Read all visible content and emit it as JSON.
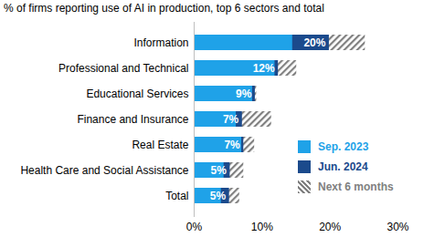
{
  "chart_data": {
    "type": "bar",
    "title": "% of firms reporting use of AI in production, top 6 sectors and total",
    "orientation": "horizontal",
    "categories": [
      "Information",
      "Professional and Technical",
      "Educational Services",
      "Finance and Insurance",
      "Real Estate",
      "Health Care and Social Assistance",
      "Total"
    ],
    "series": [
      {
        "name": "Sep. 2023",
        "color": "#1fa2e8",
        "values": [
          14.5,
          11.9,
          8.6,
          6.2,
          7.0,
          4.4,
          4.0
        ]
      },
      {
        "name": "Jun. 2024",
        "color": "#1b4a8c",
        "values": [
          19.9,
          12.4,
          9.0,
          7.1,
          7.3,
          5.3,
          5.2
        ],
        "value_labels": [
          "20%",
          "12%",
          "9%",
          "7%",
          "7%",
          "5%",
          "5%"
        ]
      },
      {
        "name": "Next 6 months",
        "color": "#808080",
        "values": [
          25.2,
          15.1,
          9.2,
          11.4,
          8.9,
          7.3,
          6.7
        ]
      }
    ],
    "xlim": [
      0,
      30
    ],
    "xticks": [
      {
        "value": 0,
        "label": "0%"
      },
      {
        "value": 10,
        "label": "10%"
      },
      {
        "value": 20,
        "label": "20%"
      },
      {
        "value": 30,
        "label": "30%"
      }
    ],
    "data_labels": true,
    "legend": "bottom-right",
    "grid": false
  }
}
